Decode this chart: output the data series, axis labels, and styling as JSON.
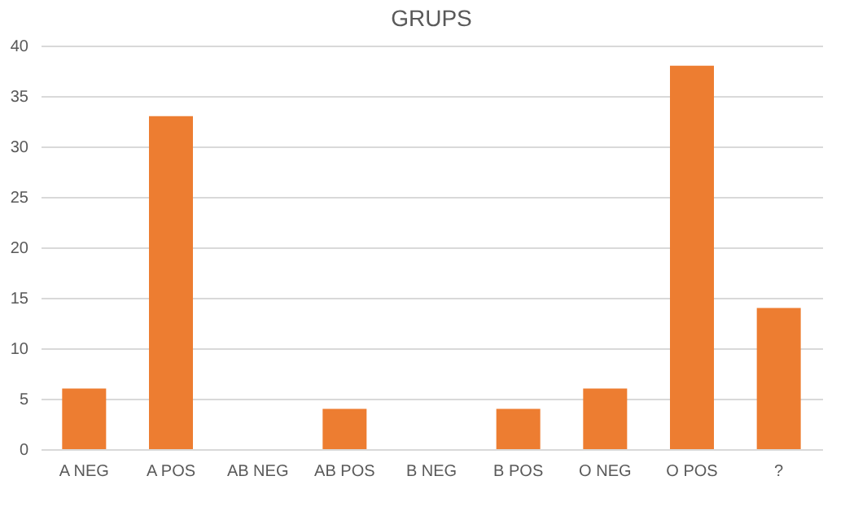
{
  "chart_data": {
    "type": "bar",
    "title": "GRUPS",
    "categories": [
      "A NEG",
      "A POS",
      "AB NEG",
      "AB POS",
      "B NEG",
      "B POS",
      "O NEG",
      "O POS",
      "?"
    ],
    "values": [
      6,
      33,
      0,
      4,
      0,
      4,
      6,
      38,
      14
    ],
    "color": "#ed7d31",
    "ylim": [
      0,
      40
    ],
    "yticks": [
      0,
      5,
      10,
      15,
      20,
      25,
      30,
      35,
      40
    ],
    "grid": "y"
  }
}
